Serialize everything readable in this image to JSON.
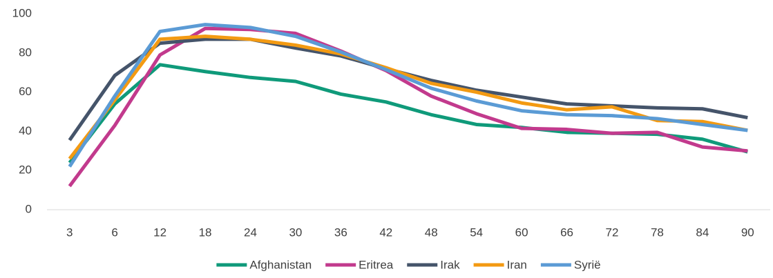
{
  "chart_data": {
    "type": "line",
    "categories": [
      "3",
      "6",
      "12",
      "18",
      "24",
      "30",
      "36",
      "42",
      "48",
      "54",
      "60",
      "66",
      "72",
      "78",
      "84",
      "90"
    ],
    "series": [
      {
        "name": "Afghanistan",
        "color": "#0f9a7a",
        "values": [
          24,
          54,
          74,
          70.5,
          67.5,
          65.5,
          59,
          55,
          48.5,
          43.5,
          42,
          39.5,
          39,
          38.5,
          36,
          29.5
        ]
      },
      {
        "name": "Eritrea",
        "color": "#c23a8d",
        "values": [
          12,
          43,
          79,
          92.5,
          92,
          90,
          81,
          71,
          58,
          49,
          41.5,
          41,
          39,
          39.5,
          32,
          30
        ]
      },
      {
        "name": "Irak",
        "color": "#45546a",
        "values": [
          35.5,
          68.5,
          85,
          87,
          87,
          82.5,
          78.5,
          72,
          66,
          61,
          57.5,
          54,
          53,
          52,
          51.5,
          47
        ]
      },
      {
        "name": "Iran",
        "color": "#f39a12",
        "values": [
          26,
          56,
          87,
          88.5,
          87,
          84,
          79.5,
          72.5,
          64.5,
          60,
          54.5,
          51,
          52.5,
          45.5,
          45,
          40.5
        ]
      },
      {
        "name": "Syrië",
        "color": "#5b9bd5",
        "values": [
          22,
          58,
          91,
          94.5,
          93,
          88.5,
          80.5,
          71.5,
          62,
          55.5,
          50.5,
          48.5,
          48,
          46.5,
          43.5,
          40.5
        ]
      }
    ],
    "ylim": [
      0,
      100
    ],
    "yticks": [
      0,
      20,
      40,
      60,
      80,
      100
    ],
    "grid": false,
    "legend": "bottom"
  }
}
